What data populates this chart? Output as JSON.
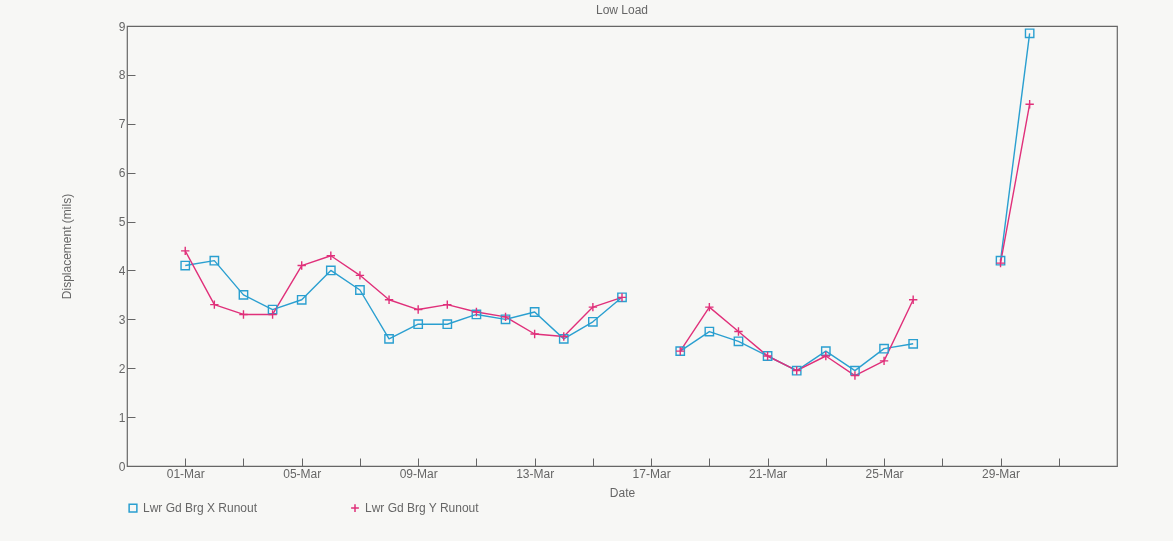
{
  "chart_data": {
    "type": "line",
    "title": "Low Load",
    "xlabel": "Date",
    "ylabel": "Displacement (mils)",
    "x": [
      "--03-01",
      "--03-02",
      "--03-03",
      "--03-04",
      "--03-05",
      "--03-06",
      "--03-07",
      "--03-08",
      "--03-09",
      "--03-10",
      "--03-11",
      "--03-12",
      "--03-13",
      "--03-14",
      "--03-15",
      "--03-16",
      "--03-17",
      "--03-18",
      "--03-19",
      "--03-20",
      "--03-21",
      "--03-22",
      "--03-23",
      "--03-24",
      "--03-25",
      "--03-26",
      "--03-27",
      "--03-28",
      "--03-29",
      "--03-30"
    ],
    "series": [
      {
        "name": "Lwr Gd Brg X Runout",
        "color": "#2a9fd0",
        "marker": "square",
        "values": [
          4.1,
          4.2,
          3.5,
          3.2,
          3.4,
          4.0,
          3.6,
          2.6,
          2.9,
          2.9,
          3.1,
          3.0,
          3.15,
          2.6,
          2.95,
          3.45,
          null,
          2.35,
          2.75,
          2.55,
          2.25,
          1.95,
          2.35,
          1.95,
          2.4,
          2.5,
          null,
          null,
          4.2,
          8.85
        ]
      },
      {
        "name": "Lwr Gd Brg Y Runout",
        "color": "#e0307a",
        "marker": "cross",
        "values": [
          4.4,
          3.3,
          3.1,
          3.1,
          4.1,
          4.3,
          3.9,
          3.4,
          3.2,
          3.3,
          3.15,
          3.05,
          2.7,
          2.65,
          3.25,
          3.45,
          null,
          2.35,
          3.25,
          2.75,
          2.25,
          1.95,
          2.25,
          1.85,
          2.15,
          3.4,
          null,
          null,
          4.15,
          7.4
        ]
      }
    ],
    "xlim": [
      "--02-27",
      "--04-02"
    ],
    "xticks": [
      {
        "value": "--03-01",
        "label": "01-Mar"
      },
      {
        "value": "--03-03",
        "label": null
      },
      {
        "value": "--03-05",
        "label": "05-Mar"
      },
      {
        "value": "--03-07",
        "label": null
      },
      {
        "value": "--03-09",
        "label": "09-Mar"
      },
      {
        "value": "--03-11",
        "label": null
      },
      {
        "value": "--03-13",
        "label": "13-Mar"
      },
      {
        "value": "--03-15",
        "label": null
      },
      {
        "value": "--03-17",
        "label": "17-Mar"
      },
      {
        "value": "--03-19",
        "label": null
      },
      {
        "value": "--03-21",
        "label": "21-Mar"
      },
      {
        "value": "--03-23",
        "label": null
      },
      {
        "value": "--03-25",
        "label": "25-Mar"
      },
      {
        "value": "--03-27",
        "label": null
      },
      {
        "value": "--03-29",
        "label": "29-Mar"
      },
      {
        "value": "--03-31",
        "label": null
      }
    ],
    "ylim": [
      0,
      9
    ],
    "yticks": [
      0,
      1,
      2,
      3,
      4,
      5,
      6,
      7,
      8,
      9
    ],
    "grid": false,
    "legend": "bottom",
    "line_style": "solid"
  }
}
